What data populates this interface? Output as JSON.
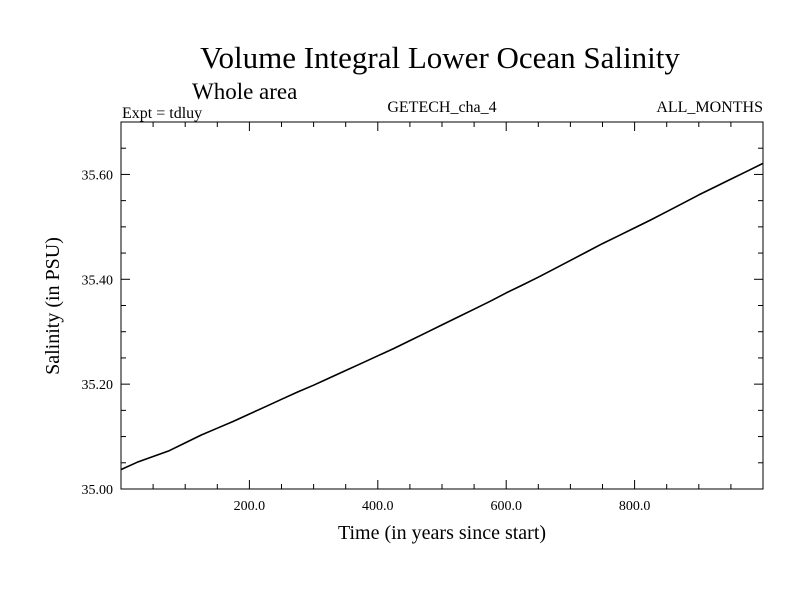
{
  "chart_data": {
    "type": "line",
    "title": "Volume Integral Lower Ocean Salinity",
    "subtitle": "Whole area",
    "header_left": "Expt = tdluy",
    "header_center": "GETECH_cha_4",
    "header_right": "ALL_MONTHS",
    "xlabel": "Time (in years since start)",
    "ylabel": "Salinity (in PSU)",
    "xlim": [
      0,
      1000
    ],
    "ylim": [
      35.0,
      35.7
    ],
    "x_ticks": [
      200,
      400,
      600,
      800
    ],
    "x_tick_labels": [
      "200.0",
      "400.0",
      "600.0",
      "800.0"
    ],
    "y_ticks": [
      35.0,
      35.2,
      35.4,
      35.6
    ],
    "y_tick_labels": [
      "35.00",
      "35.20",
      "35.40",
      "35.60"
    ],
    "grid": false,
    "series": [
      {
        "x": [
          0,
          25,
          50,
          75,
          100,
          125,
          150,
          175,
          200,
          225,
          250,
          275,
          300,
          325,
          350,
          375,
          400,
          425,
          450,
          475,
          500,
          525,
          550,
          575,
          600,
          625,
          650,
          675,
          700,
          725,
          750,
          775,
          800,
          825,
          850,
          875,
          900,
          925,
          950,
          975,
          1000
        ],
        "y": [
          35.037,
          35.051,
          35.062,
          35.073,
          35.088,
          35.103,
          35.116,
          35.129,
          35.143,
          35.157,
          35.171,
          35.185,
          35.198,
          35.212,
          35.226,
          35.24,
          35.254,
          35.268,
          35.283,
          35.298,
          35.313,
          35.328,
          35.343,
          35.358,
          35.374,
          35.389,
          35.404,
          35.42,
          35.436,
          35.452,
          35.468,
          35.483,
          35.498,
          35.513,
          35.529,
          35.545,
          35.561,
          35.576,
          35.591,
          35.606,
          35.621
        ],
        "color": "#000000"
      }
    ]
  }
}
